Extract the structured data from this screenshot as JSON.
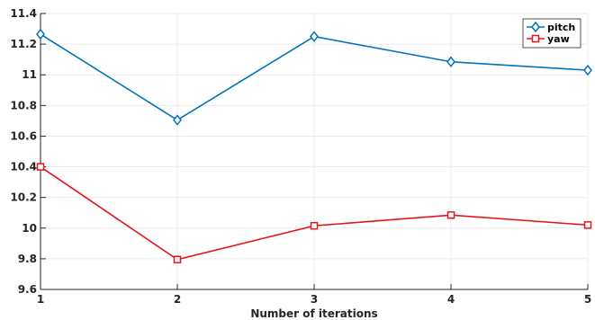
{
  "chart_data": {
    "type": "line",
    "x": [
      1,
      2,
      3,
      4,
      5
    ],
    "xlabel": "Number of iterations",
    "ylabel": "",
    "xlim": [
      1,
      5
    ],
    "ylim": [
      9.6,
      11.4
    ],
    "xticks": [
      "1",
      "2",
      "3",
      "4",
      "5"
    ],
    "yticks": [
      "9.6",
      "9.8",
      "10",
      "10.2",
      "10.4",
      "10.6",
      "10.8",
      "11",
      "11.2",
      "11.4"
    ],
    "grid": true,
    "legend_position": "top-right",
    "series": [
      {
        "name": "pitch",
        "color": "#0072bd",
        "marker": "diamond",
        "values": [
          11.265,
          10.705,
          11.25,
          11.085,
          11.03
        ]
      },
      {
        "name": "yaw",
        "color": "#e8141c",
        "marker": "square",
        "values": [
          10.4,
          9.795,
          10.015,
          10.085,
          10.02
        ]
      }
    ]
  }
}
